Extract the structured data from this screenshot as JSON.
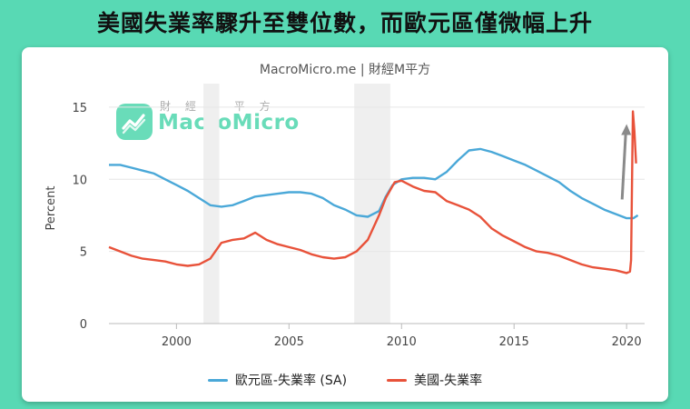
{
  "headline": "美國失業率驟升至雙位數，而歐元區僅微幅上升",
  "source": "MacroMicro.me | 財經M平方",
  "watermark": {
    "sub": "財 經 M 平 方",
    "name": "MacroMicro"
  },
  "colors": {
    "background": "#58d9b4",
    "eurozone": "#4aa8d8",
    "us": "#e8523a",
    "recession": "#efefef",
    "arrow": "#8a8a8a"
  },
  "chart_data": {
    "type": "line",
    "ylabel": "Percent",
    "xlabel": "",
    "xlim": [
      1997.0,
      2020.8
    ],
    "ylim": [
      0,
      16
    ],
    "x_ticks": [
      "2000",
      "2005",
      "2010",
      "2015",
      "2020"
    ],
    "x_tick_values": [
      2000,
      2005,
      2010,
      2015,
      2020
    ],
    "y_ticks": [
      "0",
      "5",
      "10",
      "15"
    ],
    "y_tick_values": [
      0,
      5,
      10,
      15
    ],
    "recession_bands": [
      [
        2001.2,
        2001.9
      ],
      [
        2007.9,
        2009.5
      ]
    ],
    "legend_position": "bottom",
    "series": [
      {
        "name": "歐元區-失業率 (SA)",
        "color": "#4aa8d8",
        "points": [
          [
            1997.0,
            11.0
          ],
          [
            1997.5,
            11.0
          ],
          [
            1998.0,
            10.8
          ],
          [
            1998.5,
            10.6
          ],
          [
            1999.0,
            10.4
          ],
          [
            1999.5,
            10.0
          ],
          [
            2000.0,
            9.6
          ],
          [
            2000.5,
            9.2
          ],
          [
            2001.0,
            8.7
          ],
          [
            2001.5,
            8.2
          ],
          [
            2002.0,
            8.1
          ],
          [
            2002.5,
            8.2
          ],
          [
            2003.0,
            8.5
          ],
          [
            2003.5,
            8.8
          ],
          [
            2004.0,
            8.9
          ],
          [
            2004.5,
            9.0
          ],
          [
            2005.0,
            9.1
          ],
          [
            2005.5,
            9.1
          ],
          [
            2006.0,
            9.0
          ],
          [
            2006.5,
            8.7
          ],
          [
            2007.0,
            8.2
          ],
          [
            2007.5,
            7.9
          ],
          [
            2008.0,
            7.5
          ],
          [
            2008.5,
            7.4
          ],
          [
            2009.0,
            7.8
          ],
          [
            2009.3,
            8.8
          ],
          [
            2009.6,
            9.6
          ],
          [
            2010.0,
            10.0
          ],
          [
            2010.5,
            10.1
          ],
          [
            2011.0,
            10.1
          ],
          [
            2011.5,
            10.0
          ],
          [
            2012.0,
            10.5
          ],
          [
            2012.5,
            11.3
          ],
          [
            2013.0,
            12.0
          ],
          [
            2013.5,
            12.1
          ],
          [
            2014.0,
            11.9
          ],
          [
            2014.5,
            11.6
          ],
          [
            2015.0,
            11.3
          ],
          [
            2015.5,
            11.0
          ],
          [
            2016.0,
            10.6
          ],
          [
            2016.5,
            10.2
          ],
          [
            2017.0,
            9.8
          ],
          [
            2017.5,
            9.2
          ],
          [
            2018.0,
            8.7
          ],
          [
            2018.5,
            8.3
          ],
          [
            2019.0,
            7.9
          ],
          [
            2019.5,
            7.6
          ],
          [
            2020.0,
            7.3
          ],
          [
            2020.3,
            7.3
          ],
          [
            2020.5,
            7.5
          ]
        ]
      },
      {
        "name": "美國-失業率",
        "color": "#e8523a",
        "points": [
          [
            1997.0,
            5.3
          ],
          [
            1997.5,
            5.0
          ],
          [
            1998.0,
            4.7
          ],
          [
            1998.5,
            4.5
          ],
          [
            1999.0,
            4.4
          ],
          [
            1999.5,
            4.3
          ],
          [
            2000.0,
            4.1
          ],
          [
            2000.5,
            4.0
          ],
          [
            2001.0,
            4.1
          ],
          [
            2001.5,
            4.5
          ],
          [
            2002.0,
            5.6
          ],
          [
            2002.5,
            5.8
          ],
          [
            2003.0,
            5.9
          ],
          [
            2003.5,
            6.3
          ],
          [
            2004.0,
            5.8
          ],
          [
            2004.5,
            5.5
          ],
          [
            2005.0,
            5.3
          ],
          [
            2005.5,
            5.1
          ],
          [
            2006.0,
            4.8
          ],
          [
            2006.5,
            4.6
          ],
          [
            2007.0,
            4.5
          ],
          [
            2007.5,
            4.6
          ],
          [
            2008.0,
            5.0
          ],
          [
            2008.5,
            5.8
          ],
          [
            2009.0,
            7.5
          ],
          [
            2009.3,
            8.7
          ],
          [
            2009.7,
            9.8
          ],
          [
            2010.0,
            9.9
          ],
          [
            2010.5,
            9.5
          ],
          [
            2011.0,
            9.2
          ],
          [
            2011.5,
            9.1
          ],
          [
            2012.0,
            8.5
          ],
          [
            2012.5,
            8.2
          ],
          [
            2013.0,
            7.9
          ],
          [
            2013.5,
            7.4
          ],
          [
            2014.0,
            6.6
          ],
          [
            2014.5,
            6.1
          ],
          [
            2015.0,
            5.7
          ],
          [
            2015.5,
            5.3
          ],
          [
            2016.0,
            5.0
          ],
          [
            2016.5,
            4.9
          ],
          [
            2017.0,
            4.7
          ],
          [
            2017.5,
            4.4
          ],
          [
            2018.0,
            4.1
          ],
          [
            2018.5,
            3.9
          ],
          [
            2019.0,
            3.8
          ],
          [
            2019.5,
            3.7
          ],
          [
            2020.0,
            3.5
          ],
          [
            2020.15,
            3.6
          ],
          [
            2020.2,
            4.4
          ],
          [
            2020.28,
            14.7
          ],
          [
            2020.35,
            13.3
          ],
          [
            2020.42,
            11.1
          ]
        ]
      }
    ]
  }
}
